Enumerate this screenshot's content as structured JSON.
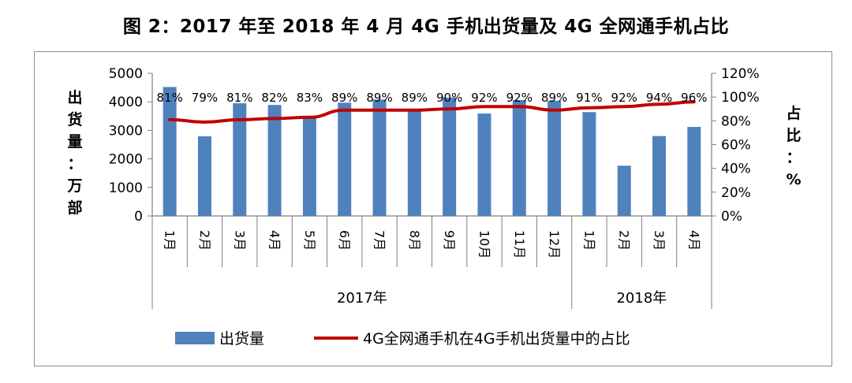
{
  "title": "图 2：2017 年至 2018 年 4 月 4G 手机出货量及 4G 全网通手机占比",
  "chart_data": {
    "type": "bar",
    "categories": [
      "1月",
      "2月",
      "3月",
      "4月",
      "5月",
      "6月",
      "7月",
      "8月",
      "9月",
      "10月",
      "11月",
      "12月",
      "1月",
      "2月",
      "3月",
      "4月"
    ],
    "groups": [
      {
        "label": "2017年",
        "count": 12
      },
      {
        "label": "2018年",
        "count": 4
      }
    ],
    "series": [
      {
        "name": "出货量",
        "type": "bar",
        "axis": "left",
        "color": "#4f81bd",
        "values": [
          4520,
          2790,
          3950,
          3890,
          3480,
          3970,
          4080,
          3700,
          4150,
          3590,
          4060,
          4040,
          3640,
          1760,
          2800,
          3120
        ]
      },
      {
        "name": "4G全网通手机在4G手机出货量中的占比",
        "type": "line",
        "axis": "right",
        "color": "#c00000",
        "values": [
          81,
          79,
          81,
          82,
          83,
          89,
          89,
          89,
          90,
          92,
          92,
          89,
          91,
          92,
          94,
          96
        ],
        "labels": [
          "81%",
          "79%",
          "81%",
          "82%",
          "83%",
          "89%",
          "89%",
          "89%",
          "90%",
          "92%",
          "92%",
          "89%",
          "91%",
          "92%",
          "94%",
          "96%"
        ]
      }
    ],
    "left_axis": {
      "title": [
        "出",
        "货",
        "量",
        "：",
        "万",
        "部"
      ],
      "min": 0,
      "max": 5000,
      "ticks": [
        0,
        1000,
        2000,
        3000,
        4000,
        5000
      ],
      "tick_labels": [
        "0",
        "1000",
        "2000",
        "3000",
        "4000",
        "5000"
      ]
    },
    "right_axis": {
      "title": [
        "占",
        "比",
        "：",
        "%"
      ],
      "min": 0,
      "max": 120,
      "ticks": [
        0,
        20,
        40,
        60,
        80,
        100,
        120
      ],
      "tick_labels": [
        "0%",
        "20%",
        "40%",
        "60%",
        "80%",
        "100%",
        "120%"
      ]
    },
    "legend_position": "bottom"
  }
}
